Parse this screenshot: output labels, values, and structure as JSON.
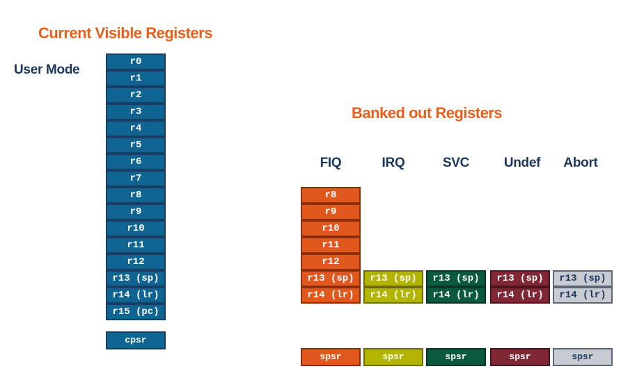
{
  "titles": {
    "current": "Current Visible Registers",
    "banked": "Banked out Registers"
  },
  "user_mode": {
    "label": "User Mode",
    "registers": [
      "r0",
      "r1",
      "r2",
      "r3",
      "r4",
      "r5",
      "r6",
      "r7",
      "r8",
      "r9",
      "r10",
      "r11",
      "r12",
      "r13 (sp)",
      "r14 (lr)",
      "r15 (pc)"
    ],
    "cpsr": "cpsr"
  },
  "banked": {
    "modes": [
      {
        "name": "FIQ",
        "registers": [
          "r8",
          "r9",
          "r10",
          "r11",
          "r12",
          "r13 (sp)",
          "r14 (lr)"
        ],
        "spsr": "spsr",
        "color": "#e0581e"
      },
      {
        "name": "IRQ",
        "registers": [
          "r13 (sp)",
          "r14 (lr)"
        ],
        "spsr": "spsr",
        "color": "#b3b400"
      },
      {
        "name": "SVC",
        "registers": [
          "r13 (sp)",
          "r14 (lr)"
        ],
        "spsr": "spsr",
        "color": "#0b5a3f"
      },
      {
        "name": "Undef",
        "registers": [
          "r13 (sp)",
          "r14 (lr)"
        ],
        "spsr": "spsr",
        "color": "#7f2735"
      },
      {
        "name": "Abort",
        "registers": [
          "r13 (sp)",
          "r14 (lr)"
        ],
        "spsr": "spsr",
        "color": "#c8cbd1"
      }
    ]
  },
  "colors": {
    "title": "#e8601c",
    "label": "#1b365d",
    "user_register": "#0f6591"
  }
}
